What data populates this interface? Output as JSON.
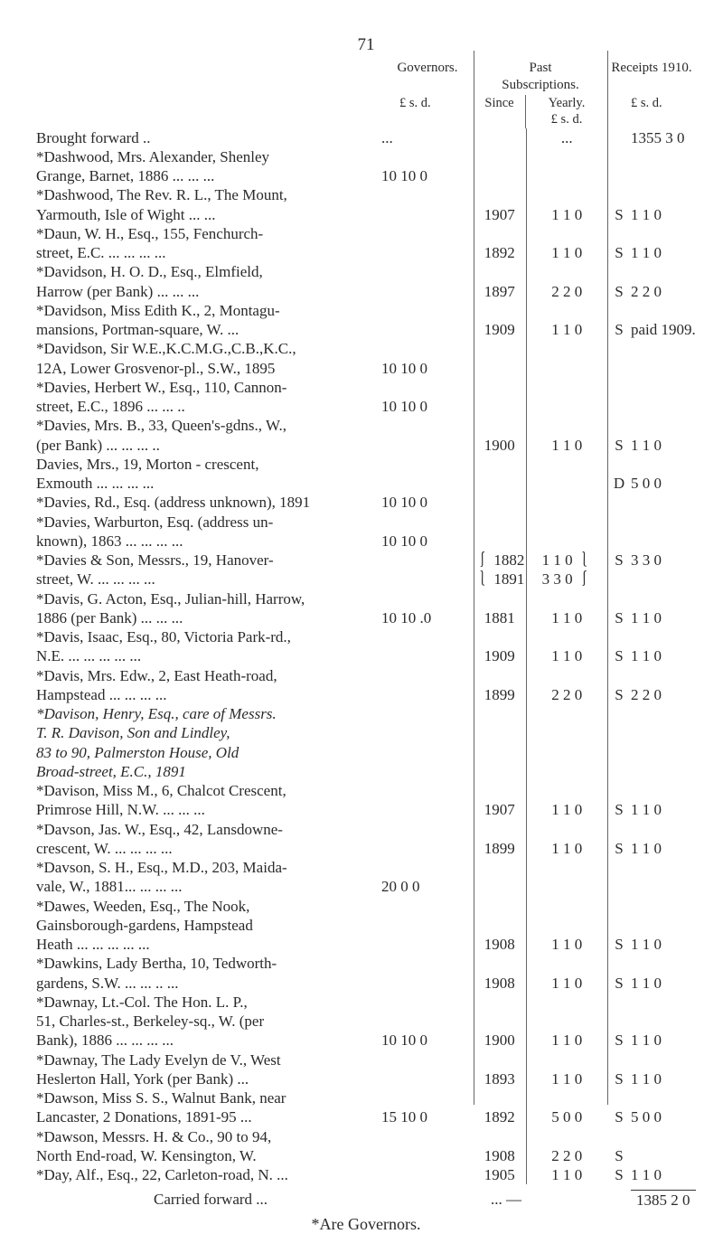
{
  "page_number": "71",
  "headers": {
    "governors": "Governors.",
    "past": "Past",
    "subscriptions": "Subscriptions.",
    "receipts": "Receipts 1910.",
    "lsd_gov": "£  s.  d.",
    "since": "Since",
    "yearly": "Yearly.",
    "lsd_yr": "£  s.  d.",
    "lsd_rec": "£    s.   d."
  },
  "rows": [
    {
      "desc": "Brought forward   ..",
      "gov": "...",
      "since": "",
      "yr": "...",
      "sd": "",
      "rec": "1355   3   0"
    },
    {
      "desc": "*Dashwood, Mrs. Alexander, Shenley",
      "gov": "",
      "since": "",
      "yr": "",
      "sd": "",
      "rec": ""
    },
    {
      "desc": "Grange, Barnet, 1886 ...   ...   ...",
      "pad": true,
      "gov": "10 10   0",
      "since": "",
      "yr": "",
      "sd": "",
      "rec": ""
    },
    {
      "desc": "*Dashwood, The Rev. R. L., The Mount,",
      "gov": "",
      "since": "",
      "yr": "",
      "sd": "",
      "rec": ""
    },
    {
      "desc": "Yarmouth, Isle of Wight   ...   ...",
      "pad": true,
      "gov": "",
      "since": "1907",
      "yr": "1   1   0",
      "sd": "S",
      "rec": "    1   1   0"
    },
    {
      "desc": "*Daun, W. H., Esq., 155, Fenchurch-",
      "gov": "",
      "since": "",
      "yr": "",
      "sd": "",
      "rec": ""
    },
    {
      "desc": "street, E.C.    ...   ...   ...   ...",
      "pad": true,
      "gov": "",
      "since": "1892",
      "yr": "1   1   0",
      "sd": "S",
      "rec": "    1   1   0"
    },
    {
      "desc": "*Davidson, H. O. D., Esq., Elmfield,",
      "gov": "",
      "since": "",
      "yr": "",
      "sd": "",
      "rec": ""
    },
    {
      "desc": "Harrow (per Bank)   ...   ...   ...",
      "pad": true,
      "gov": "",
      "since": "1897",
      "yr": "2   2   0",
      "sd": "S",
      "rec": "    2   2   0"
    },
    {
      "desc": "*Davidson, Miss Edith K., 2, Montagu-",
      "gov": "",
      "since": "",
      "yr": "",
      "sd": "",
      "rec": ""
    },
    {
      "desc": "mansions, Portman-square, W.    ...",
      "pad": true,
      "gov": "",
      "since": "1909",
      "yr": "1   1   0",
      "sd": "S",
      "rec": "paid 1909."
    },
    {
      "desc": "*Davidson, Sir W.E.,K.C.M.G.,C.B.,K.C.,",
      "gov": "",
      "since": "",
      "yr": "",
      "sd": "",
      "rec": ""
    },
    {
      "desc": "12A, Lower Grosvenor-pl., S.W., 1895",
      "pad": true,
      "gov": "10 10   0",
      "since": "",
      "yr": "",
      "sd": "",
      "rec": ""
    },
    {
      "desc": "*Davies, Herbert W., Esq., 110, Cannon-",
      "gov": "",
      "since": "",
      "yr": "",
      "sd": "",
      "rec": ""
    },
    {
      "desc": "street, E.C., 1896   ...   ...   ..",
      "pad": true,
      "gov": "10 10   0",
      "since": "",
      "yr": "",
      "sd": "",
      "rec": ""
    },
    {
      "desc": "*Davies, Mrs. B., 33, Queen's-gdns., W.,",
      "gov": "",
      "since": "",
      "yr": "",
      "sd": "",
      "rec": ""
    },
    {
      "desc": "(per Bank)     ...   ...   ...   ..",
      "pad": true,
      "gov": "",
      "since": "1900",
      "yr": "1   1   0",
      "sd": "S",
      "rec": "    1   1   0"
    },
    {
      "desc": "Davies, Mrs., 19, Morton - crescent,",
      "gov": "",
      "since": "",
      "yr": "",
      "sd": "",
      "rec": ""
    },
    {
      "desc": "Exmouth     ...   ...   ...   ...",
      "pad": true,
      "gov": "",
      "since": "",
      "yr": "",
      "sd": "D",
      "rec": "    5   0   0"
    },
    {
      "desc": "*Davies, Rd., Esq. (address unknown), 1891",
      "gov": "10 10   0",
      "since": "",
      "yr": "",
      "sd": "",
      "rec": ""
    },
    {
      "desc": "*Davies, Warburton, Esq. (address un-",
      "gov": "",
      "since": "",
      "yr": "",
      "sd": "",
      "rec": ""
    },
    {
      "desc": "known), 1863 ...   ...   ...   ...",
      "pad": true,
      "gov": "10 10   0",
      "since": "",
      "yr": "",
      "sd": "",
      "rec": ""
    },
    {
      "desc": "*Davies & Son, Messrs., 19, Hanover-",
      "gov": "",
      "since": "⎰ 1882",
      "yr": "1  1  0 ⎱",
      "sd": "S",
      "rec": "    3   3   0"
    },
    {
      "desc": "street, W.    ...   ...   ...   ...",
      "pad": true,
      "gov": "",
      "since": "⎱ 1891",
      "yr": "3  3  0 ⎰",
      "sd": "",
      "rec": ""
    },
    {
      "desc": "*Davis, G. Acton, Esq., Julian-hill, Harrow,",
      "gov": "",
      "since": "",
      "yr": "",
      "sd": "",
      "rec": ""
    },
    {
      "desc": "1886 (per Bank)     ...   ...   ...",
      "pad": true,
      "gov": "10 10  .0",
      "since": "1881",
      "yr": "1   1   0",
      "sd": "S",
      "rec": "    1   1   0"
    },
    {
      "desc": "*Davis, Isaac, Esq., 80, Victoria Park-rd.,",
      "gov": "",
      "since": "",
      "yr": "",
      "sd": "",
      "rec": ""
    },
    {
      "desc": "N.E.  ...   ...   ...   ...   ...",
      "pad": true,
      "gov": "",
      "since": "1909",
      "yr": "1   1   0",
      "sd": "S",
      "rec": "    1   1   0"
    },
    {
      "desc": "*Davis, Mrs. Edw., 2, East Heath-road,",
      "gov": "",
      "since": "",
      "yr": "",
      "sd": "",
      "rec": ""
    },
    {
      "desc": "Hampstead    ...   ...   ...   ...",
      "pad": true,
      "gov": "",
      "since": "1899",
      "yr": "2   2   0",
      "sd": "S",
      "rec": "    2   2   0"
    },
    {
      "desc": "*Davison, Henry, Esq., care of Messrs.",
      "it": true,
      "gov": "",
      "since": "",
      "yr": "",
      "sd": "",
      "rec": ""
    },
    {
      "desc": "T. R. Davison, Son and Lindley,",
      "it": true,
      "pad": true,
      "gov": "",
      "since": "",
      "yr": "",
      "sd": "",
      "rec": ""
    },
    {
      "desc": "83 to 90, Palmerston House, Old",
      "it": true,
      "pad": true,
      "gov": "",
      "since": "",
      "yr": "",
      "sd": "",
      "rec": ""
    },
    {
      "desc": "Broad-street, E.C., 1891",
      "it": true,
      "pad": true,
      "gov": "",
      "since": "",
      "yr": "",
      "sd": "",
      "rec": ""
    },
    {
      "desc": "*Davison, Miss M., 6, Chalcot Crescent,",
      "gov": "",
      "since": "",
      "yr": "",
      "sd": "",
      "rec": ""
    },
    {
      "desc": "Primrose Hill, N.W. ...   ...   ...",
      "pad": true,
      "gov": "",
      "since": "1907",
      "yr": "1   1   0",
      "sd": "S",
      "rec": "    1   1   0"
    },
    {
      "desc": "*Davson, Jas. W., Esq., 42, Lansdowne-",
      "gov": "",
      "since": "",
      "yr": "",
      "sd": "",
      "rec": ""
    },
    {
      "desc": "crescent, W.  ...   ...   ...   ...",
      "pad": true,
      "gov": "",
      "since": "1899",
      "yr": "1   1   0",
      "sd": "S",
      "rec": "    1   1   0"
    },
    {
      "desc": "*Davson, S. H., Esq., M.D., 203, Maida-",
      "gov": "",
      "since": "",
      "yr": "",
      "sd": "",
      "rec": ""
    },
    {
      "desc": "vale, W., 1881...   ...   ...   ...",
      "pad": true,
      "gov": "20   0   0",
      "since": "",
      "yr": "",
      "sd": "",
      "rec": ""
    },
    {
      "desc": "*Dawes, Weeden, Esq., The Nook,",
      "gov": "",
      "since": "",
      "yr": "",
      "sd": "",
      "rec": ""
    },
    {
      "desc": "Gainsborough-gardens, Hampstead",
      "pad": true,
      "gov": "",
      "since": "",
      "yr": "",
      "sd": "",
      "rec": ""
    },
    {
      "desc": "Heath  ...   ...   ...   ...   ...",
      "pad": true,
      "gov": "",
      "since": "1908",
      "yr": "1   1   0",
      "sd": "S",
      "rec": "    1   1   0"
    },
    {
      "desc": "*Dawkins, Lady Bertha, 10, Tedworth-",
      "gov": "",
      "since": "",
      "yr": "",
      "sd": "",
      "rec": ""
    },
    {
      "desc": "gardens, S.W. ...   ...   ..   ...",
      "pad": true,
      "gov": "",
      "since": "1908",
      "yr": "1   1   0",
      "sd": "S",
      "rec": "    1   1   0"
    },
    {
      "desc": "*Dawnay, Lt.-Col. The Hon. L. P.,",
      "gov": "",
      "since": "",
      "yr": "",
      "sd": "",
      "rec": ""
    },
    {
      "desc": "51, Charles-st., Berkeley-sq., W. (per",
      "pad": true,
      "gov": "",
      "since": "",
      "yr": "",
      "sd": "",
      "rec": ""
    },
    {
      "desc": "Bank), 1886    ...   ...   ...   ...",
      "pad": true,
      "gov": "10 10   0",
      "since": "1900",
      "yr": "1   1   0",
      "sd": "S",
      "rec": "    1   1   0"
    },
    {
      "desc": "*Dawnay, The Lady Evelyn de V., West",
      "gov": "",
      "since": "",
      "yr": "",
      "sd": "",
      "rec": ""
    },
    {
      "desc": "Heslerton Hall, York (per Bank)   ...",
      "pad": true,
      "gov": "",
      "since": "1893",
      "yr": "1   1   0",
      "sd": "S",
      "rec": "    1   1   0"
    },
    {
      "desc": "*Dawson, Miss S. S., Walnut Bank, near",
      "gov": "",
      "since": "",
      "yr": "",
      "sd": "",
      "rec": ""
    },
    {
      "desc": "Lancaster, 2 Donations, 1891-95   ...",
      "pad": true,
      "gov": "15 10   0",
      "since": "1892",
      "yr": "5   0   0",
      "sd": "S",
      "rec": "    5   0   0"
    },
    {
      "desc": "*Dawson, Messrs. H. & Co., 90 to 94,",
      "gov": "",
      "since": "",
      "yr": "",
      "sd": "",
      "rec": ""
    },
    {
      "desc": "North End-road, W. Kensington, W.",
      "pad": true,
      "gov": "",
      "since": "1908",
      "yr": "2   2   0",
      "sd": "S",
      "rec": ""
    },
    {
      "desc": "*Day, Alf., Esq., 22, Carleton-road, N. ...",
      "gov": "",
      "since": "1905",
      "yr": "1   1   0",
      "sd": "S",
      "rec": "    1   1   0"
    }
  ],
  "carried": {
    "label": "Carried forward    ...",
    "mid": "...                     —",
    "total": "1385   2   0"
  },
  "footer": "*Are Governors."
}
